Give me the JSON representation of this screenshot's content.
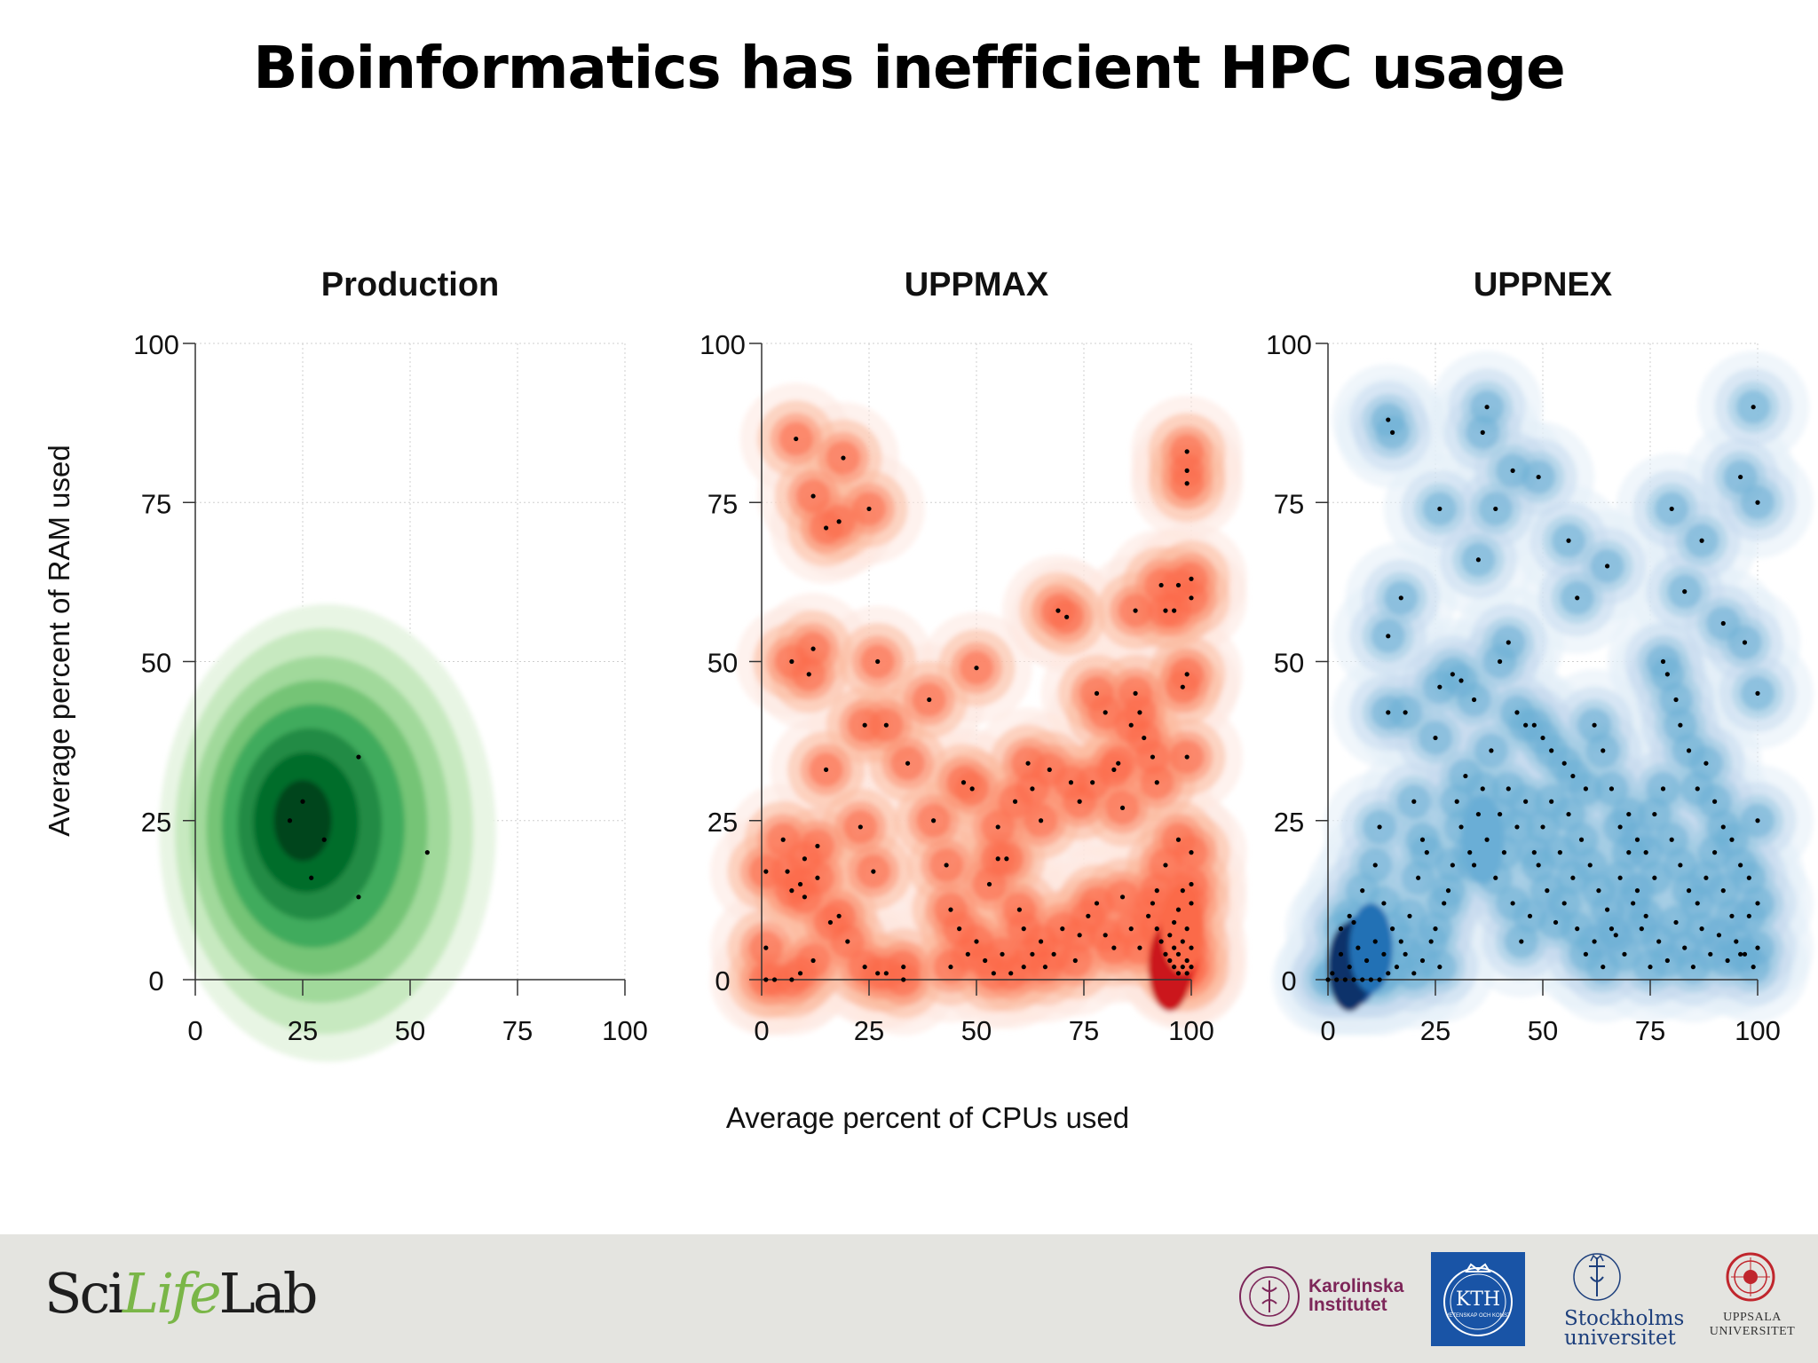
{
  "slide": {
    "title": "Bioinformatics has inefficient HPC usage"
  },
  "footer": {
    "scilifelab": {
      "pre": "Sci",
      "life": "Life",
      "post": "Lab"
    },
    "karolinska": {
      "line1": "Karolinska",
      "line2": "Institutet",
      "seal_text": "KAROLINSKA INSTITUTET ANNO 1810"
    },
    "kth": {
      "name": "KTH",
      "motto": "VETENSKAP OCH KONST"
    },
    "stockholm": {
      "line1": "Stockholms",
      "line2": "universitet"
    },
    "uppsala": {
      "line1": "UPPSALA",
      "line2": "UNIVERSITET"
    }
  },
  "colors": {
    "production": "#238b45",
    "uppmax": "#de2d26",
    "uppnex": "#2171b5",
    "background": "#ffffff",
    "footer": "#e4e4e0",
    "grid": "#c8c8c8"
  },
  "chart_data": [
    {
      "type": "scatter",
      "title": "Production",
      "xlabel": "Average percent of CPUs used",
      "ylabel": "Average percent of RAM used",
      "xlim": [
        0,
        100
      ],
      "ylim": [
        0,
        100
      ],
      "xticks": [
        0,
        25,
        50,
        75,
        100
      ],
      "yticks": [
        0,
        25,
        50,
        75,
        100
      ],
      "grid": true,
      "density": "green",
      "points": [
        [
          22,
          25
        ],
        [
          25,
          28
        ],
        [
          27,
          16
        ],
        [
          38,
          13
        ],
        [
          38,
          35
        ],
        [
          54,
          20
        ],
        [
          30,
          22
        ]
      ]
    },
    {
      "type": "scatter",
      "title": "UPPMAX",
      "xlabel": "Average percent of CPUs used",
      "ylabel": "Average percent of RAM used",
      "xlim": [
        0,
        100
      ],
      "ylim": [
        0,
        100
      ],
      "xticks": [
        0,
        25,
        50,
        75,
        100
      ],
      "yticks": [
        0,
        25,
        50,
        75,
        100
      ],
      "grid": true,
      "density": "red",
      "points": [
        [
          8,
          85
        ],
        [
          12,
          76
        ],
        [
          19,
          82
        ],
        [
          15,
          71
        ],
        [
          18,
          72
        ],
        [
          25,
          74
        ],
        [
          7,
          50
        ],
        [
          12,
          52
        ],
        [
          11,
          48
        ],
        [
          27,
          50
        ],
        [
          29,
          40
        ],
        [
          24,
          40
        ],
        [
          39,
          44
        ],
        [
          50,
          49
        ],
        [
          34,
          34
        ],
        [
          15,
          33
        ],
        [
          5,
          22
        ],
        [
          10,
          19
        ],
        [
          13,
          21
        ],
        [
          7,
          14
        ],
        [
          9,
          15
        ],
        [
          10,
          13
        ],
        [
          13,
          16
        ],
        [
          6,
          17
        ],
        [
          16,
          9
        ],
        [
          18,
          10
        ],
        [
          20,
          6
        ],
        [
          1,
          17
        ],
        [
          1,
          5
        ],
        [
          1,
          0
        ],
        [
          3,
          0
        ],
        [
          7,
          0
        ],
        [
          9,
          1
        ],
        [
          12,
          3
        ],
        [
          24,
          2
        ],
        [
          27,
          1
        ],
        [
          29,
          1
        ],
        [
          33,
          2
        ],
        [
          33,
          0
        ],
        [
          23,
          24
        ],
        [
          26,
          17
        ],
        [
          40,
          25
        ],
        [
          43,
          18
        ],
        [
          44,
          11
        ],
        [
          47,
          31
        ],
        [
          49,
          30
        ],
        [
          53,
          15
        ],
        [
          55,
          19
        ],
        [
          57,
          19
        ],
        [
          55,
          24
        ],
        [
          59,
          28
        ],
        [
          60,
          11
        ],
        [
          61,
          8
        ],
        [
          62,
          34
        ],
        [
          63,
          30
        ],
        [
          65,
          25
        ],
        [
          67,
          33
        ],
        [
          69,
          58
        ],
        [
          71,
          57
        ],
        [
          72,
          31
        ],
        [
          74,
          28
        ],
        [
          77,
          31
        ],
        [
          78,
          45
        ],
        [
          80,
          42
        ],
        [
          82,
          33
        ],
        [
          83,
          34
        ],
        [
          84,
          27
        ],
        [
          86,
          40
        ],
        [
          87,
          45
        ],
        [
          87,
          58
        ],
        [
          88,
          42
        ],
        [
          89,
          38
        ],
        [
          91,
          35
        ],
        [
          92,
          31
        ],
        [
          93,
          62
        ],
        [
          94,
          58
        ],
        [
          96,
          58
        ],
        [
          97,
          62
        ],
        [
          99,
          35
        ],
        [
          99,
          48
        ],
        [
          99,
          78
        ],
        [
          99,
          80
        ],
        [
          99,
          83
        ],
        [
          100,
          63
        ],
        [
          100,
          60
        ],
        [
          98,
          46
        ],
        [
          90,
          10
        ],
        [
          91,
          12
        ],
        [
          92,
          8
        ],
        [
          93,
          6
        ],
        [
          94,
          4
        ],
        [
          95,
          3
        ],
        [
          95,
          7
        ],
        [
          96,
          2
        ],
        [
          96,
          5
        ],
        [
          96,
          9
        ],
        [
          97,
          1
        ],
        [
          97,
          4
        ],
        [
          97,
          11
        ],
        [
          98,
          2
        ],
        [
          98,
          6
        ],
        [
          98,
          14
        ],
        [
          99,
          1
        ],
        [
          99,
          3
        ],
        [
          99,
          8
        ],
        [
          100,
          2
        ],
        [
          100,
          5
        ],
        [
          100,
          12
        ],
        [
          100,
          15
        ],
        [
          100,
          20
        ],
        [
          97,
          22
        ],
        [
          94,
          18
        ],
        [
          92,
          14
        ],
        [
          88,
          5
        ],
        [
          86,
          8
        ],
        [
          84,
          13
        ],
        [
          82,
          5
        ],
        [
          80,
          7
        ],
        [
          78,
          12
        ],
        [
          76,
          10
        ],
        [
          74,
          7
        ],
        [
          73,
          3
        ],
        [
          70,
          8
        ],
        [
          68,
          4
        ],
        [
          66,
          2
        ],
        [
          65,
          6
        ],
        [
          63,
          4
        ],
        [
          61,
          2
        ],
        [
          58,
          1
        ],
        [
          56,
          4
        ],
        [
          54,
          1
        ],
        [
          52,
          3
        ],
        [
          50,
          6
        ],
        [
          48,
          4
        ],
        [
          46,
          8
        ],
        [
          44,
          2
        ]
      ]
    },
    {
      "type": "scatter",
      "title": "UPPNEX",
      "xlabel": "Average percent of CPUs used",
      "ylabel": "Average percent of RAM used",
      "xlim": [
        0,
        100
      ],
      "ylim": [
        0,
        100
      ],
      "xticks": [
        0,
        25,
        50,
        75,
        100
      ],
      "yticks": [
        0,
        25,
        50,
        75,
        100
      ],
      "grid": true,
      "density": "blue",
      "points": [
        [
          14,
          88
        ],
        [
          15,
          86
        ],
        [
          37,
          90
        ],
        [
          36,
          86
        ],
        [
          39,
          74
        ],
        [
          35,
          66
        ],
        [
          43,
          80
        ],
        [
          26,
          74
        ],
        [
          49,
          79
        ],
        [
          56,
          69
        ],
        [
          58,
          60
        ],
        [
          65,
          65
        ],
        [
          80,
          74
        ],
        [
          87,
          69
        ],
        [
          96,
          79
        ],
        [
          99,
          90
        ],
        [
          100,
          75
        ],
        [
          97,
          53
        ],
        [
          100,
          45
        ],
        [
          92,
          56
        ],
        [
          83,
          61
        ],
        [
          17,
          60
        ],
        [
          14,
          54
        ],
        [
          14,
          42
        ],
        [
          18,
          42
        ],
        [
          25,
          38
        ],
        [
          26,
          46
        ],
        [
          29,
          48
        ],
        [
          31,
          47
        ],
        [
          34,
          44
        ],
        [
          40,
          50
        ],
        [
          42,
          53
        ],
        [
          44,
          42
        ],
        [
          46,
          40
        ],
        [
          48,
          40
        ],
        [
          50,
          38
        ],
        [
          52,
          36
        ],
        [
          55,
          34
        ],
        [
          57,
          32
        ],
        [
          60,
          30
        ],
        [
          62,
          40
        ],
        [
          64,
          36
        ],
        [
          66,
          30
        ],
        [
          68,
          24
        ],
        [
          70,
          26
        ],
        [
          72,
          22
        ],
        [
          74,
          20
        ],
        [
          76,
          16
        ],
        [
          78,
          50
        ],
        [
          79,
          48
        ],
        [
          81,
          44
        ],
        [
          82,
          40
        ],
        [
          84,
          36
        ],
        [
          86,
          30
        ],
        [
          88,
          34
        ],
        [
          90,
          28
        ],
        [
          92,
          24
        ],
        [
          94,
          22
        ],
        [
          96,
          18
        ],
        [
          98,
          10
        ],
        [
          100,
          5
        ],
        [
          100,
          12
        ],
        [
          99,
          2
        ],
        [
          97,
          4
        ],
        [
          95,
          6
        ],
        [
          93,
          3
        ],
        [
          91,
          7
        ],
        [
          89,
          4
        ],
        [
          87,
          8
        ],
        [
          85,
          2
        ],
        [
          83,
          5
        ],
        [
          81,
          9
        ],
        [
          79,
          3
        ],
        [
          77,
          6
        ],
        [
          75,
          2
        ],
        [
          73,
          8
        ],
        [
          71,
          12
        ],
        [
          69,
          4
        ],
        [
          67,
          7
        ],
        [
          65,
          11
        ],
        [
          63,
          14
        ],
        [
          61,
          18
        ],
        [
          59,
          22
        ],
        [
          57,
          16
        ],
        [
          55,
          12
        ],
        [
          53,
          9
        ],
        [
          51,
          14
        ],
        [
          49,
          18
        ],
        [
          47,
          10
        ],
        [
          45,
          6
        ],
        [
          43,
          12
        ],
        [
          41,
          20
        ],
        [
          39,
          16
        ],
        [
          37,
          22
        ],
        [
          35,
          26
        ],
        [
          33,
          20
        ],
        [
          31,
          24
        ],
        [
          29,
          18
        ],
        [
          27,
          12
        ],
        [
          25,
          8
        ],
        [
          23,
          20
        ],
        [
          21,
          16
        ],
        [
          19,
          10
        ],
        [
          17,
          6
        ],
        [
          15,
          8
        ],
        [
          13,
          4
        ],
        [
          11,
          6
        ],
        [
          9,
          3
        ],
        [
          7,
          5
        ],
        [
          5,
          2
        ],
        [
          3,
          4
        ],
        [
          1,
          1
        ],
        [
          0,
          0
        ],
        [
          2,
          0
        ],
        [
          4,
          0
        ],
        [
          6,
          0
        ],
        [
          8,
          0
        ],
        [
          10,
          0
        ],
        [
          12,
          0
        ],
        [
          14,
          1
        ],
        [
          16,
          2
        ],
        [
          18,
          4
        ],
        [
          20,
          1
        ],
        [
          22,
          3
        ],
        [
          24,
          6
        ],
        [
          26,
          2
        ],
        [
          28,
          14
        ],
        [
          30,
          28
        ],
        [
          32,
          32
        ],
        [
          34,
          18
        ],
        [
          36,
          30
        ],
        [
          38,
          36
        ],
        [
          40,
          26
        ],
        [
          42,
          30
        ],
        [
          44,
          24
        ],
        [
          46,
          28
        ],
        [
          48,
          20
        ],
        [
          50,
          24
        ],
        [
          52,
          28
        ],
        [
          54,
          20
        ],
        [
          56,
          26
        ],
        [
          58,
          8
        ],
        [
          60,
          4
        ],
        [
          62,
          6
        ],
        [
          64,
          2
        ],
        [
          66,
          8
        ],
        [
          68,
          16
        ],
        [
          70,
          20
        ],
        [
          72,
          14
        ],
        [
          74,
          10
        ],
        [
          76,
          26
        ],
        [
          78,
          30
        ],
        [
          80,
          22
        ],
        [
          82,
          18
        ],
        [
          84,
          14
        ],
        [
          86,
          12
        ],
        [
          88,
          16
        ],
        [
          90,
          20
        ],
        [
          92,
          14
        ],
        [
          94,
          10
        ],
        [
          96,
          4
        ],
        [
          98,
          16
        ],
        [
          100,
          25
        ],
        [
          11,
          18
        ],
        [
          13,
          12
        ],
        [
          6,
          9
        ],
        [
          8,
          14
        ],
        [
          20,
          28
        ],
        [
          22,
          22
        ],
        [
          12,
          24
        ],
        [
          5,
          10
        ],
        [
          3,
          8
        ]
      ]
    }
  ]
}
